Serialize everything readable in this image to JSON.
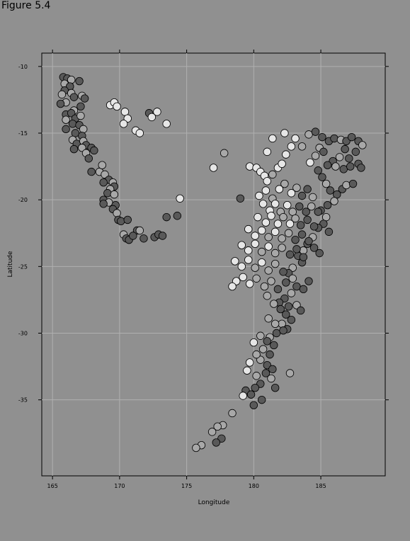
{
  "figure_label": "Figure 5.4",
  "chart_data": {
    "type": "scatter",
    "title": "",
    "xlabel": "Longitude",
    "ylabel": "Latitude",
    "xlim": [
      164.2,
      189.8
    ],
    "ylim": [
      -40.7,
      -9.0
    ],
    "xticks": [
      165,
      170,
      175,
      180,
      185
    ],
    "yticks": [
      -10,
      -15,
      -20,
      -25,
      -30,
      -35
    ],
    "grid": true,
    "colors": {
      "background": "#909090",
      "shallow": "#e6e6e6",
      "medium": "#a8a8a8",
      "deep": "#595959",
      "grid": "#b0b0b0"
    },
    "depth_groups": [
      "shallow",
      "medium",
      "deep"
    ],
    "points": [
      [
        165.8,
        -10.8,
        "deep"
      ],
      [
        166.1,
        -10.9,
        "deep"
      ],
      [
        166.4,
        -11.0,
        "medium"
      ],
      [
        165.9,
        -11.3,
        "medium"
      ],
      [
        166.3,
        -11.5,
        "deep"
      ],
      [
        165.9,
        -11.8,
        "deep"
      ],
      [
        165.7,
        -12.1,
        "medium"
      ],
      [
        166.4,
        -12.0,
        "medium"
      ],
      [
        166.6,
        -12.3,
        "deep"
      ],
      [
        167.0,
        -11.1,
        "deep"
      ],
      [
        167.2,
        -12.2,
        "medium"
      ],
      [
        167.4,
        -12.4,
        "deep"
      ],
      [
        166.0,
        -12.7,
        "medium"
      ],
      [
        165.6,
        -12.8,
        "deep"
      ],
      [
        166.6,
        -13.3,
        "medium"
      ],
      [
        167.1,
        -13.0,
        "deep"
      ],
      [
        166.0,
        -13.6,
        "deep"
      ],
      [
        166.4,
        -13.5,
        "deep"
      ],
      [
        166.7,
        -13.9,
        "deep"
      ],
      [
        167.1,
        -13.7,
        "medium"
      ],
      [
        166.0,
        -14.0,
        "medium"
      ],
      [
        166.5,
        -14.3,
        "deep"
      ],
      [
        167.0,
        -14.4,
        "deep"
      ],
      [
        167.3,
        -14.7,
        "medium"
      ],
      [
        166.0,
        -14.7,
        "deep"
      ],
      [
        166.7,
        -15.0,
        "deep"
      ],
      [
        167.2,
        -15.2,
        "deep"
      ],
      [
        166.5,
        -15.5,
        "medium"
      ],
      [
        166.8,
        -15.8,
        "deep"
      ],
      [
        167.3,
        -15.6,
        "medium"
      ],
      [
        167.5,
        -15.9,
        "deep"
      ],
      [
        166.6,
        -16.2,
        "deep"
      ],
      [
        167.2,
        -16.1,
        "medium"
      ],
      [
        167.9,
        -16.1,
        "deep"
      ],
      [
        168.1,
        -16.3,
        "deep"
      ],
      [
        167.5,
        -16.5,
        "medium"
      ],
      [
        167.7,
        -16.9,
        "deep"
      ],
      [
        167.9,
        -17.9,
        "deep"
      ],
      [
        168.5,
        -17.9,
        "medium"
      ],
      [
        168.7,
        -17.4,
        "medium"
      ],
      [
        168.9,
        -18.1,
        "medium"
      ],
      [
        169.2,
        -18.5,
        "deep"
      ],
      [
        168.8,
        -18.7,
        "deep"
      ],
      [
        169.5,
        -18.7,
        "medium"
      ],
      [
        169.6,
        -19.0,
        "deep"
      ],
      [
        169.3,
        -19.2,
        "medium"
      ],
      [
        169.1,
        -19.5,
        "deep"
      ],
      [
        169.6,
        -19.6,
        "medium"
      ],
      [
        168.8,
        -20.0,
        "deep"
      ],
      [
        169.2,
        -20.2,
        "medium"
      ],
      [
        169.7,
        -20.4,
        "deep"
      ],
      [
        168.8,
        -20.3,
        "deep"
      ],
      [
        169.5,
        -20.7,
        "deep"
      ],
      [
        169.8,
        -21.0,
        "medium"
      ],
      [
        169.9,
        -21.5,
        "deep"
      ],
      [
        170.1,
        -21.6,
        "deep"
      ],
      [
        170.6,
        -21.5,
        "deep"
      ],
      [
        170.3,
        -22.6,
        "medium"
      ],
      [
        170.5,
        -22.9,
        "deep"
      ],
      [
        170.7,
        -23.0,
        "deep"
      ],
      [
        171.3,
        -22.3,
        "deep"
      ],
      [
        171.5,
        -22.3,
        "medium"
      ],
      [
        171.0,
        -22.7,
        "deep"
      ],
      [
        171.8,
        -22.9,
        "deep"
      ],
      [
        172.6,
        -22.8,
        "deep"
      ],
      [
        172.9,
        -22.6,
        "deep"
      ],
      [
        173.2,
        -22.7,
        "deep"
      ],
      [
        173.5,
        -21.3,
        "deep"
      ],
      [
        174.3,
        -21.2,
        "deep"
      ],
      [
        174.5,
        -19.9,
        "shallow"
      ],
      [
        169.3,
        -12.9,
        "shallow"
      ],
      [
        169.6,
        -12.7,
        "shallow"
      ],
      [
        169.8,
        -13.0,
        "shallow"
      ],
      [
        170.4,
        -13.4,
        "shallow"
      ],
      [
        170.6,
        -13.9,
        "shallow"
      ],
      [
        170.3,
        -14.3,
        "shallow"
      ],
      [
        171.2,
        -14.8,
        "shallow"
      ],
      [
        171.5,
        -15.0,
        "shallow"
      ],
      [
        172.2,
        -13.5,
        "deep"
      ],
      [
        172.4,
        -13.8,
        "shallow"
      ],
      [
        172.8,
        -13.4,
        "shallow"
      ],
      [
        173.5,
        -14.3,
        "shallow"
      ],
      [
        177.0,
        -17.6,
        "shallow"
      ],
      [
        177.8,
        -16.5,
        "medium"
      ],
      [
        179.0,
        -19.9,
        "deep"
      ],
      [
        179.7,
        -17.5,
        "shallow"
      ],
      [
        180.2,
        -17.6,
        "shallow"
      ],
      [
        180.5,
        -17.9,
        "shallow"
      ],
      [
        180.8,
        -18.2,
        "shallow"
      ],
      [
        181.0,
        -18.6,
        "shallow"
      ],
      [
        181.4,
        -18.1,
        "medium"
      ],
      [
        181.8,
        -17.6,
        "shallow"
      ],
      [
        182.1,
        -17.3,
        "shallow"
      ],
      [
        182.4,
        -16.6,
        "shallow"
      ],
      [
        182.8,
        -16.0,
        "shallow"
      ],
      [
        182.3,
        -15.0,
        "shallow"
      ],
      [
        181.4,
        -15.4,
        "shallow"
      ],
      [
        181.0,
        -16.4,
        "shallow"
      ],
      [
        183.1,
        -15.4,
        "shallow"
      ],
      [
        183.6,
        -16.0,
        "medium"
      ],
      [
        184.1,
        -15.1,
        "medium"
      ],
      [
        184.6,
        -14.9,
        "deep"
      ],
      [
        185.1,
        -15.3,
        "deep"
      ],
      [
        185.6,
        -15.6,
        "deep"
      ],
      [
        186.0,
        -15.4,
        "deep"
      ],
      [
        186.5,
        -15.5,
        "medium"
      ],
      [
        186.9,
        -15.6,
        "deep"
      ],
      [
        187.3,
        -15.3,
        "deep"
      ],
      [
        187.8,
        -15.6,
        "deep"
      ],
      [
        188.1,
        -15.9,
        "medium"
      ],
      [
        187.6,
        -16.4,
        "deep"
      ],
      [
        187.1,
        -16.9,
        "deep"
      ],
      [
        186.8,
        -16.2,
        "deep"
      ],
      [
        186.4,
        -16.8,
        "medium"
      ],
      [
        185.9,
        -17.1,
        "deep"
      ],
      [
        185.5,
        -17.4,
        "deep"
      ],
      [
        186.1,
        -17.5,
        "medium"
      ],
      [
        186.7,
        -17.7,
        "deep"
      ],
      [
        187.2,
        -17.5,
        "deep"
      ],
      [
        187.8,
        -17.3,
        "deep"
      ],
      [
        188.0,
        -17.6,
        "deep"
      ],
      [
        184.9,
        -16.1,
        "medium"
      ],
      [
        185.2,
        -16.4,
        "deep"
      ],
      [
        184.6,
        -16.7,
        "medium"
      ],
      [
        184.2,
        -17.2,
        "shallow"
      ],
      [
        184.8,
        -17.8,
        "deep"
      ],
      [
        185.1,
        -18.3,
        "deep"
      ],
      [
        185.4,
        -18.8,
        "medium"
      ],
      [
        185.7,
        -19.3,
        "deep"
      ],
      [
        186.2,
        -19.6,
        "deep"
      ],
      [
        186.6,
        -19.2,
        "deep"
      ],
      [
        186.9,
        -18.9,
        "medium"
      ],
      [
        187.4,
        -18.8,
        "deep"
      ],
      [
        186.0,
        -20.1,
        "medium"
      ],
      [
        185.5,
        -20.4,
        "deep"
      ],
      [
        185.0,
        -20.8,
        "deep"
      ],
      [
        185.4,
        -21.3,
        "medium"
      ],
      [
        185.2,
        -21.8,
        "deep"
      ],
      [
        184.8,
        -22.1,
        "deep"
      ],
      [
        185.6,
        -22.4,
        "deep"
      ],
      [
        184.4,
        -22.8,
        "medium"
      ],
      [
        184.0,
        -23.3,
        "deep"
      ],
      [
        184.5,
        -23.6,
        "deep"
      ],
      [
        184.9,
        -24.0,
        "deep"
      ],
      [
        183.7,
        -23.8,
        "medium"
      ],
      [
        183.3,
        -24.2,
        "deep"
      ],
      [
        183.6,
        -24.7,
        "deep"
      ],
      [
        182.9,
        -25.1,
        "medium"
      ],
      [
        182.6,
        -25.5,
        "deep"
      ],
      [
        182.9,
        -25.9,
        "medium"
      ],
      [
        182.4,
        -26.2,
        "deep"
      ],
      [
        183.2,
        -26.5,
        "deep"
      ],
      [
        183.7,
        -26.7,
        "deep"
      ],
      [
        184.1,
        -26.1,
        "deep"
      ],
      [
        182.8,
        -27.0,
        "medium"
      ],
      [
        182.3,
        -27.4,
        "deep"
      ],
      [
        181.9,
        -27.7,
        "deep"
      ],
      [
        182.6,
        -28.0,
        "deep"
      ],
      [
        183.2,
        -27.9,
        "medium"
      ],
      [
        183.5,
        -28.3,
        "deep"
      ],
      [
        182.4,
        -28.6,
        "deep"
      ],
      [
        182.8,
        -29.0,
        "deep"
      ],
      [
        182.1,
        -29.3,
        "medium"
      ],
      [
        182.5,
        -29.7,
        "deep"
      ],
      [
        181.7,
        -30.0,
        "deep"
      ],
      [
        181.2,
        -30.3,
        "medium"
      ],
      [
        181.0,
        -30.6,
        "deep"
      ],
      [
        181.5,
        -30.9,
        "deep"
      ],
      [
        180.7,
        -31.2,
        "medium"
      ],
      [
        181.2,
        -31.6,
        "deep"
      ],
      [
        180.5,
        -32.0,
        "medium"
      ],
      [
        181.0,
        -32.4,
        "deep"
      ],
      [
        181.4,
        -32.7,
        "deep"
      ],
      [
        180.9,
        -33.0,
        "deep"
      ],
      [
        181.3,
        -33.4,
        "medium"
      ],
      [
        180.5,
        -33.8,
        "deep"
      ],
      [
        180.1,
        -34.1,
        "deep"
      ],
      [
        179.4,
        -34.3,
        "deep"
      ],
      [
        179.2,
        -34.7,
        "shallow"
      ],
      [
        179.8,
        -34.6,
        "deep"
      ],
      [
        180.6,
        -35.0,
        "deep"
      ],
      [
        180.0,
        -35.4,
        "deep"
      ],
      [
        178.4,
        -36.0,
        "medium"
      ],
      [
        177.7,
        -36.9,
        "medium"
      ],
      [
        177.3,
        -37.0,
        "medium"
      ],
      [
        176.9,
        -37.4,
        "medium"
      ],
      [
        177.6,
        -37.9,
        "deep"
      ],
      [
        177.2,
        -38.2,
        "deep"
      ],
      [
        176.1,
        -38.4,
        "medium"
      ],
      [
        175.7,
        -38.6,
        "medium"
      ],
      [
        180.4,
        -19.7,
        "shallow"
      ],
      [
        180.9,
        -19.3,
        "shallow"
      ],
      [
        181.4,
        -19.9,
        "medium"
      ],
      [
        181.9,
        -19.2,
        "shallow"
      ],
      [
        182.3,
        -18.8,
        "medium"
      ],
      [
        182.8,
        -19.5,
        "shallow"
      ],
      [
        183.2,
        -19.1,
        "medium"
      ],
      [
        183.6,
        -19.7,
        "deep"
      ],
      [
        184.0,
        -19.2,
        "deep"
      ],
      [
        184.4,
        -19.8,
        "medium"
      ],
      [
        180.7,
        -20.3,
        "shallow"
      ],
      [
        181.2,
        -20.8,
        "shallow"
      ],
      [
        181.6,
        -20.3,
        "shallow"
      ],
      [
        182.0,
        -20.9,
        "medium"
      ],
      [
        182.5,
        -20.4,
        "shallow"
      ],
      [
        182.9,
        -20.9,
        "medium"
      ],
      [
        183.4,
        -20.5,
        "deep"
      ],
      [
        183.9,
        -20.9,
        "deep"
      ],
      [
        184.3,
        -20.5,
        "medium"
      ],
      [
        184.8,
        -20.9,
        "deep"
      ],
      [
        180.3,
        -21.3,
        "shallow"
      ],
      [
        180.9,
        -21.7,
        "shallow"
      ],
      [
        181.3,
        -21.2,
        "shallow"
      ],
      [
        181.8,
        -21.8,
        "shallow"
      ],
      [
        182.2,
        -21.3,
        "medium"
      ],
      [
        182.7,
        -21.8,
        "shallow"
      ],
      [
        183.1,
        -21.4,
        "medium"
      ],
      [
        183.5,
        -21.9,
        "deep"
      ],
      [
        184.0,
        -21.5,
        "deep"
      ],
      [
        184.5,
        -22.0,
        "deep"
      ],
      [
        179.6,
        -22.2,
        "shallow"
      ],
      [
        180.1,
        -22.7,
        "shallow"
      ],
      [
        180.6,
        -22.3,
        "shallow"
      ],
      [
        181.1,
        -22.8,
        "medium"
      ],
      [
        181.6,
        -22.4,
        "shallow"
      ],
      [
        182.1,
        -22.9,
        "medium"
      ],
      [
        182.6,
        -22.5,
        "medium"
      ],
      [
        183.1,
        -23.0,
        "deep"
      ],
      [
        183.6,
        -22.6,
        "deep"
      ],
      [
        184.1,
        -23.1,
        "deep"
      ],
      [
        179.1,
        -23.4,
        "shallow"
      ],
      [
        179.6,
        -23.8,
        "shallow"
      ],
      [
        180.1,
        -23.3,
        "shallow"
      ],
      [
        180.6,
        -23.9,
        "medium"
      ],
      [
        181.1,
        -23.5,
        "shallow"
      ],
      [
        181.6,
        -24.0,
        "medium"
      ],
      [
        182.1,
        -23.6,
        "medium"
      ],
      [
        182.7,
        -24.1,
        "deep"
      ],
      [
        183.2,
        -23.7,
        "deep"
      ],
      [
        183.7,
        -24.3,
        "deep"
      ],
      [
        178.6,
        -24.6,
        "shallow"
      ],
      [
        179.1,
        -25.0,
        "shallow"
      ],
      [
        179.6,
        -24.5,
        "shallow"
      ],
      [
        180.1,
        -25.1,
        "medium"
      ],
      [
        180.6,
        -24.7,
        "shallow"
      ],
      [
        181.1,
        -25.3,
        "medium"
      ],
      [
        181.6,
        -24.8,
        "medium"
      ],
      [
        182.2,
        -25.4,
        "deep"
      ],
      [
        178.7,
        -26.1,
        "shallow"
      ],
      [
        179.2,
        -25.8,
        "shallow"
      ],
      [
        179.7,
        -26.3,
        "shallow"
      ],
      [
        180.2,
        -25.9,
        "medium"
      ],
      [
        180.8,
        -26.5,
        "medium"
      ],
      [
        181.3,
        -26.1,
        "medium"
      ],
      [
        181.8,
        -26.7,
        "deep"
      ],
      [
        178.4,
        -26.5,
        "shallow"
      ],
      [
        181.0,
        -27.2,
        "medium"
      ],
      [
        181.5,
        -27.8,
        "medium"
      ],
      [
        182.0,
        -28.2,
        "deep"
      ],
      [
        181.1,
        -28.9,
        "medium"
      ],
      [
        181.6,
        -29.3,
        "medium"
      ],
      [
        182.2,
        -29.8,
        "deep"
      ],
      [
        180.5,
        -30.2,
        "medium"
      ],
      [
        180.0,
        -30.7,
        "shallow"
      ],
      [
        180.2,
        -31.6,
        "medium"
      ],
      [
        179.7,
        -32.2,
        "shallow"
      ],
      [
        179.5,
        -32.8,
        "shallow"
      ],
      [
        180.2,
        -33.2,
        "medium"
      ],
      [
        182.7,
        -33.0,
        "medium"
      ],
      [
        181.6,
        -34.1,
        "deep"
      ]
    ]
  }
}
